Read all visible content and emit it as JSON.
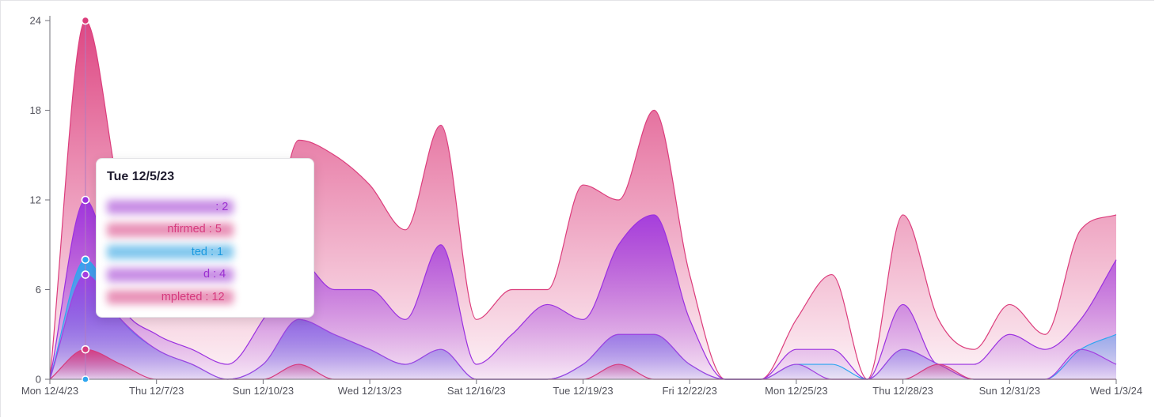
{
  "chart_data": {
    "type": "area",
    "stacked": true,
    "x": [
      "12/4/23",
      "12/5/23",
      "12/6/23",
      "12/7/23",
      "12/8/23",
      "12/9/23",
      "12/10/23",
      "12/11/23",
      "12/12/23",
      "12/13/23",
      "12/14/23",
      "12/15/23",
      "12/16/23",
      "12/17/23",
      "12/18/23",
      "12/19/23",
      "12/20/23",
      "12/21/23",
      "12/22/23",
      "12/23/23",
      "12/24/23",
      "12/25/23",
      "12/26/23",
      "12/27/23",
      "12/28/23",
      "12/29/23",
      "12/30/23",
      "12/31/23",
      "1/1/24",
      "1/2/24",
      "1/3/24"
    ],
    "x_tick_labels": [
      "Mon 12/4/23",
      "Thu 12/7/23",
      "Sun 12/10/23",
      "Wed 12/13/23",
      "Sat 12/16/23",
      "Tue 12/19/23",
      "Fri 12/22/23",
      "Mon 12/25/23",
      "Thu 12/28/23",
      "Sun 12/31/23",
      "Wed 1/3/24"
    ],
    "x_tick_index": [
      0,
      3,
      6,
      9,
      12,
      15,
      18,
      21,
      24,
      27,
      30
    ],
    "y_ticks": [
      0,
      6,
      12,
      18,
      24
    ],
    "ylim": [
      0,
      24
    ],
    "grid": false,
    "series": [
      {
        "color": "#d63a7e",
        "values": [
          0,
          2,
          1,
          0,
          0,
          0,
          0,
          1,
          0,
          0,
          0,
          0,
          0,
          0,
          0,
          0,
          1,
          0,
          0,
          0,
          0,
          0,
          0,
          0,
          0,
          1,
          0,
          0,
          0,
          0,
          0
        ]
      },
      {
        "color": "#a43fe0",
        "values": [
          0,
          5,
          3,
          2,
          1,
          0,
          1,
          3,
          3,
          2,
          1,
          2,
          0,
          0,
          0,
          1,
          2,
          3,
          1,
          0,
          0,
          1,
          0,
          0,
          2,
          0,
          0,
          0,
          0,
          2,
          1
        ]
      },
      {
        "color": "#2ea6f0",
        "values": [
          0,
          1,
          0,
          0,
          0,
          0,
          0,
          0,
          0,
          0,
          0,
          0,
          0,
          0,
          0,
          0,
          0,
          0,
          0,
          0,
          0,
          0,
          1,
          0,
          0,
          0,
          0,
          0,
          0,
          0,
          2
        ]
      },
      {
        "color": "#9b30e0",
        "values": [
          0,
          4,
          1,
          1,
          1,
          1,
          3,
          4,
          3,
          4,
          3,
          7,
          1,
          3,
          5,
          3,
          6,
          8,
          3,
          0,
          0,
          1,
          1,
          0,
          3,
          0,
          1,
          3,
          2,
          2,
          5
        ]
      },
      {
        "color": "#dc3d7c",
        "values": [
          0,
          12,
          7,
          4,
          3,
          4,
          2,
          8,
          9,
          7,
          6,
          8,
          3,
          3,
          1,
          9,
          3,
          7,
          3,
          0,
          0,
          2,
          5,
          0,
          6,
          3,
          1,
          2,
          1,
          6,
          3
        ]
      }
    ],
    "hover": {
      "date": "Tue 12/5/23",
      "rows": [
        {
          "name": "Un-teste- -lerie",
          "value": "2",
          "shown_tail": ": 2",
          "color": "#9b30d0"
        },
        {
          "name": "Unconfirmed",
          "value": "5",
          "shown_tail": "nfirmed : 5",
          "color": "#d63a7e"
        },
        {
          "name": "Lead - Contacted",
          "value": "1",
          "shown_tail": "ted : 1",
          "color": "#1c9ae0"
        },
        {
          "name": "Confirmed",
          "value": "4",
          "shown_tail": "d : 4",
          "color": "#9b30d0"
        },
        {
          "name": "Not Completed",
          "value": "12",
          "shown_tail": "mpleted : 12",
          "color": "#d63a7e"
        }
      ]
    }
  }
}
